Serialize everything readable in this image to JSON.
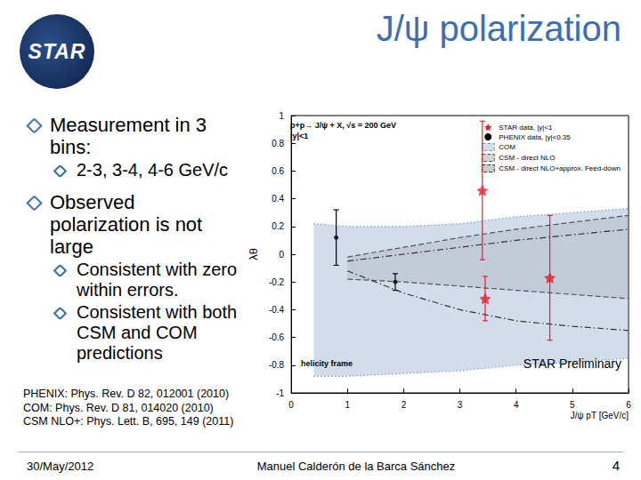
{
  "slide": {
    "logo": "STAR",
    "title": "J/ψ polarization",
    "bullets": [
      {
        "text": "Measurement in 3 bins:",
        "sub": [
          "2-3, 3-4, 4-6 GeV/c"
        ]
      },
      {
        "text": "Observed polarization is not large",
        "sub": [
          "Consistent with zero within errors.",
          "Consistent with both CSM and COM predictions"
        ]
      }
    ],
    "references": [
      "PHENIX: Phys. Rev. D 82, 012001 (2010)",
      "COM: Phys. Rev. D 81, 014020 (2010)",
      "CSM NLO+: Phys. Lett. B, 695, 149 (2011)"
    ],
    "footer": {
      "date": "30/May/2012",
      "author": "Manuel Calderón de la Barca Sánchez",
      "page": "4"
    }
  },
  "chart_data": {
    "type": "scatter",
    "xlabel": "J/ψ pT [GeV/c]",
    "ylabel": "λθ",
    "annotations": [
      "p+p→ J/ψ + X, √s = 200 GeV",
      "|y|<1",
      "helicity frame",
      "STAR Preliminary"
    ],
    "xlim": [
      0,
      6
    ],
    "xticks": [
      0,
      1,
      2,
      3,
      4,
      5,
      6
    ],
    "ylim": [
      -1,
      1
    ],
    "yticks": [
      -1,
      -0.8,
      -0.6,
      -0.4,
      -0.2,
      0,
      0.2,
      0.4,
      0.6,
      0.8,
      1
    ],
    "grid": false,
    "legend": "top-right",
    "series": [
      {
        "name": "STAR data, |y|<1",
        "type": "scatter",
        "marker": "star",
        "color": "#e3202a",
        "x": [
          3.4,
          3.45,
          4.6
        ],
        "values": [
          0.46,
          -0.32,
          -0.17
        ],
        "errors": [
          0.5,
          0.16,
          0.45
        ]
      },
      {
        "name": "PHENIX data, |y|<0.35",
        "type": "scatter",
        "marker": "circle",
        "color": "#000000",
        "x": [
          0.8,
          1.85
        ],
        "values": [
          0.12,
          -0.2
        ],
        "errors": [
          0.2,
          0.06
        ]
      },
      {
        "name": "COM",
        "type": "band",
        "line_style": "dotted",
        "color": "#7f9cc4",
        "x": [
          0.4,
          1,
          2,
          3,
          4,
          5,
          6
        ],
        "lower": [
          -0.88,
          -0.88,
          -0.86,
          -0.84,
          -0.8,
          -0.78,
          -0.75
        ],
        "upper": [
          0.22,
          0.2,
          0.2,
          0.22,
          0.27,
          0.3,
          0.33
        ]
      },
      {
        "name": "CSM - direct NLO",
        "type": "band",
        "line_style": "dashed",
        "color": "#555555",
        "x": [
          1,
          2,
          3,
          4,
          5,
          6
        ],
        "lower": [
          -0.18,
          -0.2,
          -0.23,
          -0.26,
          -0.29,
          -0.32
        ],
        "upper": [
          -0.02,
          0.05,
          0.12,
          0.18,
          0.23,
          0.28
        ]
      },
      {
        "name": "CSM - direct NLO+approx. Feed-down",
        "type": "band",
        "line_style": "dashdot",
        "color": "#333333",
        "x": [
          1,
          2,
          3,
          4,
          5,
          6
        ],
        "lower": [
          -0.12,
          -0.28,
          -0.4,
          -0.48,
          -0.52,
          -0.55
        ],
        "upper": [
          -0.05,
          0.0,
          0.05,
          0.1,
          0.14,
          0.18
        ]
      }
    ]
  }
}
